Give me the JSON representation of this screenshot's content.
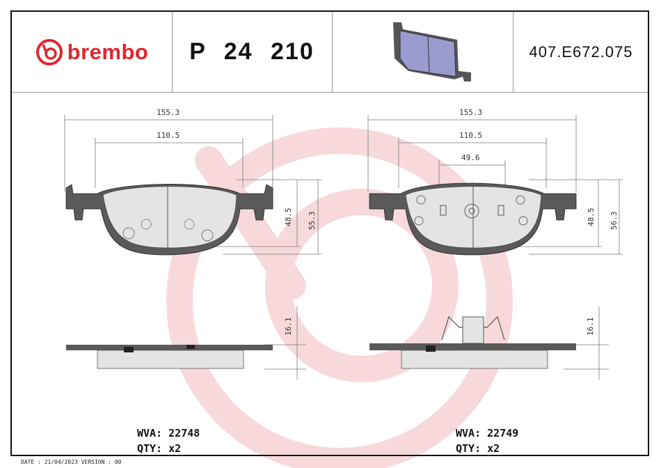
{
  "header": {
    "brand": "brembo",
    "part_number": "P 24 210",
    "reference": "407.E672.075"
  },
  "drawing": {
    "left_pad": {
      "overall_width": "155.3",
      "inner_width": "110.5",
      "height_inner": "48.5",
      "height_overall": "55.3",
      "thickness": "16.1"
    },
    "right_pad": {
      "overall_width": "155.3",
      "inner_width": "110.5",
      "center_width": "49.6",
      "height_inner": "48.5",
      "height_overall": "56.3",
      "thickness": "16.1"
    }
  },
  "left_info": {
    "wva": "WVA: 22748",
    "qty": "QTY: x2"
  },
  "right_info": {
    "wva": "WVA: 22749",
    "qty": "QTY: x2"
  },
  "footer": "DATE : 21/04/2023 VERSION : 00",
  "colors": {
    "brand_red": "#e0262c",
    "watermark": "#f7d9db",
    "backplate": "#5a5a5a",
    "friction": "#e4e4e4",
    "pad_3d": "#9a9ccf"
  }
}
